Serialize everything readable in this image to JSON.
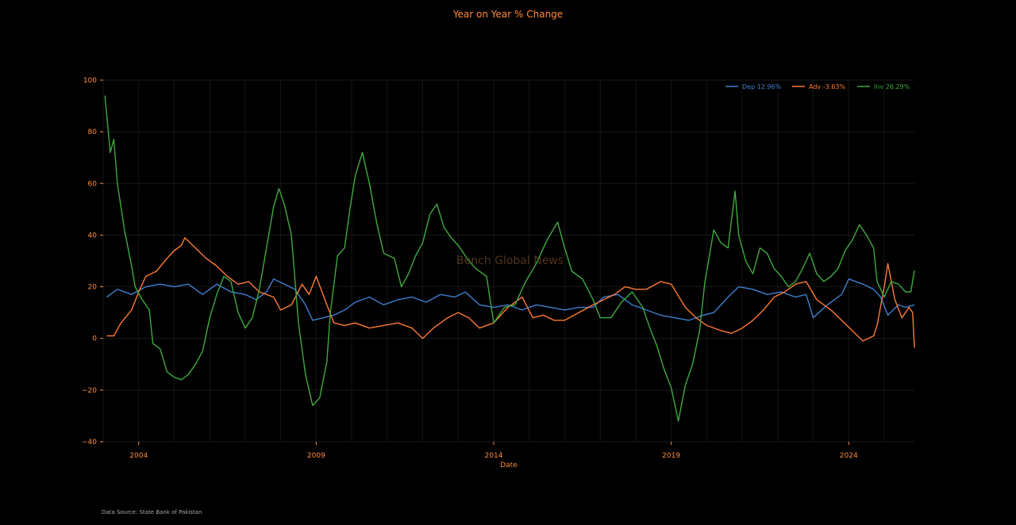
{
  "chart_data": {
    "type": "line",
    "title": "Year on Year % Change",
    "xlabel": "Date",
    "ylabel": "",
    "source": "Data Source: State Bank of Pakistan",
    "watermark": "Bench Global News",
    "xlim": [
      2003.0,
      2025.85
    ],
    "ylim": [
      -40,
      100
    ],
    "xticks": [
      2004,
      2009,
      2014,
      2019,
      2024
    ],
    "xtick_labels": [
      "2004",
      "2009",
      "2014",
      "2019",
      "2024"
    ],
    "yticks": [
      -40,
      -20,
      0,
      20,
      40,
      60,
      80,
      100
    ],
    "ytick_labels": [
      "−40",
      "−20",
      "0",
      "20",
      "40",
      "60",
      "80",
      "100"
    ],
    "legend_position": "top-right",
    "grid": true,
    "series": [
      {
        "name": "Dep 12.96%",
        "color": "#3f7fd0",
        "points": [
          [
            2003.1,
            16
          ],
          [
            2003.4,
            19
          ],
          [
            2003.8,
            17
          ],
          [
            2004.2,
            20
          ],
          [
            2004.6,
            21
          ],
          [
            2005.0,
            20
          ],
          [
            2005.4,
            21
          ],
          [
            2005.8,
            17
          ],
          [
            2006.2,
            21
          ],
          [
            2006.6,
            18
          ],
          [
            2007.0,
            17
          ],
          [
            2007.3,
            15
          ],
          [
            2007.6,
            18
          ],
          [
            2007.8,
            23
          ],
          [
            2008.1,
            21
          ],
          [
            2008.4,
            19
          ],
          [
            2008.7,
            13
          ],
          [
            2008.9,
            7
          ],
          [
            2009.2,
            8
          ],
          [
            2009.5,
            9
          ],
          [
            2009.8,
            11
          ],
          [
            2010.1,
            14
          ],
          [
            2010.5,
            16
          ],
          [
            2010.9,
            13
          ],
          [
            2011.3,
            15
          ],
          [
            2011.7,
            16
          ],
          [
            2012.1,
            14
          ],
          [
            2012.5,
            17
          ],
          [
            2012.9,
            16
          ],
          [
            2013.2,
            18
          ],
          [
            2013.6,
            13
          ],
          [
            2014.0,
            12
          ],
          [
            2014.4,
            13
          ],
          [
            2014.8,
            11
          ],
          [
            2015.2,
            13
          ],
          [
            2015.6,
            12
          ],
          [
            2016.0,
            11
          ],
          [
            2016.4,
            12
          ],
          [
            2016.8,
            12
          ],
          [
            2017.1,
            16
          ],
          [
            2017.5,
            17
          ],
          [
            2017.9,
            13
          ],
          [
            2018.3,
            11
          ],
          [
            2018.7,
            9
          ],
          [
            2019.1,
            8
          ],
          [
            2019.5,
            7
          ],
          [
            2019.9,
            9
          ],
          [
            2020.2,
            10
          ],
          [
            2020.6,
            16
          ],
          [
            2020.9,
            20
          ],
          [
            2021.3,
            19
          ],
          [
            2021.7,
            17
          ],
          [
            2022.1,
            18
          ],
          [
            2022.5,
            16
          ],
          [
            2022.8,
            17
          ],
          [
            2023.0,
            8
          ],
          [
            2023.4,
            13
          ],
          [
            2023.8,
            17
          ],
          [
            2024.0,
            23
          ],
          [
            2024.4,
            21
          ],
          [
            2024.7,
            19
          ],
          [
            2024.9,
            16
          ],
          [
            2025.1,
            9
          ],
          [
            2025.4,
            13
          ],
          [
            2025.6,
            12
          ],
          [
            2025.85,
            13
          ]
        ]
      },
      {
        "name": "Adv -3.63%",
        "color": "#ff7a33",
        "points": [
          [
            2003.1,
            1
          ],
          [
            2003.3,
            1
          ],
          [
            2003.5,
            6
          ],
          [
            2003.8,
            11
          ],
          [
            2004.0,
            18
          ],
          [
            2004.2,
            24
          ],
          [
            2004.5,
            26
          ],
          [
            2004.8,
            31
          ],
          [
            2005.0,
            34
          ],
          [
            2005.2,
            36
          ],
          [
            2005.3,
            39
          ],
          [
            2005.6,
            35
          ],
          [
            2005.9,
            31
          ],
          [
            2006.2,
            28
          ],
          [
            2006.5,
            24
          ],
          [
            2006.8,
            21
          ],
          [
            2007.1,
            22
          ],
          [
            2007.4,
            18
          ],
          [
            2007.8,
            16
          ],
          [
            2008.0,
            11
          ],
          [
            2008.3,
            13
          ],
          [
            2008.6,
            21
          ],
          [
            2008.8,
            17
          ],
          [
            2009.0,
            24
          ],
          [
            2009.3,
            13
          ],
          [
            2009.5,
            6
          ],
          [
            2009.8,
            5
          ],
          [
            2010.1,
            6
          ],
          [
            2010.5,
            4
          ],
          [
            2010.9,
            5
          ],
          [
            2011.3,
            6
          ],
          [
            2011.7,
            4
          ],
          [
            2012.0,
            0
          ],
          [
            2012.3,
            4
          ],
          [
            2012.7,
            8
          ],
          [
            2013.0,
            10
          ],
          [
            2013.3,
            8
          ],
          [
            2013.6,
            4
          ],
          [
            2014.0,
            6
          ],
          [
            2014.4,
            12
          ],
          [
            2014.8,
            16
          ],
          [
            2015.1,
            8
          ],
          [
            2015.4,
            9
          ],
          [
            2015.7,
            7
          ],
          [
            2016.0,
            7
          ],
          [
            2016.4,
            10
          ],
          [
            2016.8,
            13
          ],
          [
            2017.1,
            15
          ],
          [
            2017.4,
            17
          ],
          [
            2017.7,
            20
          ],
          [
            2018.0,
            19
          ],
          [
            2018.3,
            19
          ],
          [
            2018.7,
            22
          ],
          [
            2019.0,
            21
          ],
          [
            2019.4,
            12
          ],
          [
            2019.7,
            8
          ],
          [
            2020.0,
            5
          ],
          [
            2020.4,
            3
          ],
          [
            2020.7,
            2
          ],
          [
            2021.0,
            4
          ],
          [
            2021.3,
            7
          ],
          [
            2021.6,
            11
          ],
          [
            2021.9,
            16
          ],
          [
            2022.2,
            18
          ],
          [
            2022.5,
            21
          ],
          [
            2022.8,
            22
          ],
          [
            2023.1,
            15
          ],
          [
            2023.5,
            11
          ],
          [
            2023.8,
            7
          ],
          [
            2024.1,
            3
          ],
          [
            2024.4,
            -1
          ],
          [
            2024.7,
            1
          ],
          [
            2024.8,
            5
          ],
          [
            2025.0,
            20
          ],
          [
            2025.1,
            29
          ],
          [
            2025.3,
            15
          ],
          [
            2025.5,
            8
          ],
          [
            2025.7,
            12
          ],
          [
            2025.8,
            10
          ],
          [
            2025.85,
            -3.63
          ]
        ]
      },
      {
        "name": "Inv 26.29%",
        "color": "#3faa3f",
        "points": [
          [
            2003.05,
            94
          ],
          [
            2003.2,
            72
          ],
          [
            2003.3,
            77
          ],
          [
            2003.4,
            60
          ],
          [
            2003.6,
            42
          ],
          [
            2003.8,
            28
          ],
          [
            2003.9,
            20
          ],
          [
            2004.1,
            15
          ],
          [
            2004.3,
            11
          ],
          [
            2004.4,
            -2
          ],
          [
            2004.6,
            -4
          ],
          [
            2004.8,
            -13
          ],
          [
            2005.0,
            -15
          ],
          [
            2005.2,
            -16
          ],
          [
            2005.4,
            -14
          ],
          [
            2005.6,
            -10
          ],
          [
            2005.8,
            -5
          ],
          [
            2006.0,
            8
          ],
          [
            2006.2,
            17
          ],
          [
            2006.4,
            24
          ],
          [
            2006.6,
            22
          ],
          [
            2006.8,
            10
          ],
          [
            2007.0,
            4
          ],
          [
            2007.2,
            8
          ],
          [
            2007.4,
            19
          ],
          [
            2007.6,
            35
          ],
          [
            2007.8,
            51
          ],
          [
            2007.95,
            58
          ],
          [
            2008.1,
            52
          ],
          [
            2008.3,
            40
          ],
          [
            2008.5,
            6
          ],
          [
            2008.7,
            -14
          ],
          [
            2008.9,
            -26
          ],
          [
            2009.1,
            -23
          ],
          [
            2009.3,
            -9
          ],
          [
            2009.4,
            10
          ],
          [
            2009.6,
            32
          ],
          [
            2009.8,
            35
          ],
          [
            2009.95,
            50
          ],
          [
            2010.1,
            63
          ],
          [
            2010.3,
            72
          ],
          [
            2010.5,
            60
          ],
          [
            2010.7,
            45
          ],
          [
            2010.9,
            33
          ],
          [
            2011.2,
            31
          ],
          [
            2011.4,
            20
          ],
          [
            2011.6,
            25
          ],
          [
            2011.8,
            32
          ],
          [
            2012.0,
            37
          ],
          [
            2012.2,
            48
          ],
          [
            2012.4,
            52
          ],
          [
            2012.6,
            43
          ],
          [
            2012.8,
            39
          ],
          [
            2013.0,
            36
          ],
          [
            2013.3,
            30
          ],
          [
            2013.5,
            27
          ],
          [
            2013.8,
            24
          ],
          [
            2014.0,
            6
          ],
          [
            2014.3,
            12
          ],
          [
            2014.6,
            13
          ],
          [
            2014.9,
            22
          ],
          [
            2015.2,
            29
          ],
          [
            2015.5,
            38
          ],
          [
            2015.8,
            45
          ],
          [
            2016.0,
            35
          ],
          [
            2016.2,
            26
          ],
          [
            2016.5,
            23
          ],
          [
            2016.8,
            15
          ],
          [
            2017.0,
            8
          ],
          [
            2017.3,
            8
          ],
          [
            2017.6,
            14
          ],
          [
            2017.9,
            18
          ],
          [
            2018.2,
            12
          ],
          [
            2018.4,
            4
          ],
          [
            2018.6,
            -3
          ],
          [
            2018.8,
            -12
          ],
          [
            2019.0,
            -19
          ],
          [
            2019.2,
            -32
          ],
          [
            2019.4,
            -18
          ],
          [
            2019.6,
            -10
          ],
          [
            2019.8,
            3
          ],
          [
            2019.95,
            22
          ],
          [
            2020.1,
            34
          ],
          [
            2020.2,
            42
          ],
          [
            2020.4,
            37
          ],
          [
            2020.6,
            35
          ],
          [
            2020.8,
            57
          ],
          [
            2020.9,
            40
          ],
          [
            2021.1,
            30
          ],
          [
            2021.3,
            25
          ],
          [
            2021.5,
            35
          ],
          [
            2021.7,
            33
          ],
          [
            2021.9,
            27
          ],
          [
            2022.1,
            24
          ],
          [
            2022.3,
            20
          ],
          [
            2022.5,
            22
          ],
          [
            2022.7,
            27
          ],
          [
            2022.9,
            33
          ],
          [
            2023.1,
            25
          ],
          [
            2023.3,
            22
          ],
          [
            2023.5,
            24
          ],
          [
            2023.7,
            27
          ],
          [
            2023.9,
            34
          ],
          [
            2024.1,
            38
          ],
          [
            2024.3,
            44
          ],
          [
            2024.5,
            40
          ],
          [
            2024.7,
            35
          ],
          [
            2024.8,
            22
          ],
          [
            2025.0,
            16
          ],
          [
            2025.2,
            22
          ],
          [
            2025.4,
            21
          ],
          [
            2025.6,
            18
          ],
          [
            2025.75,
            18
          ],
          [
            2025.85,
            26.29
          ]
        ]
      }
    ]
  }
}
